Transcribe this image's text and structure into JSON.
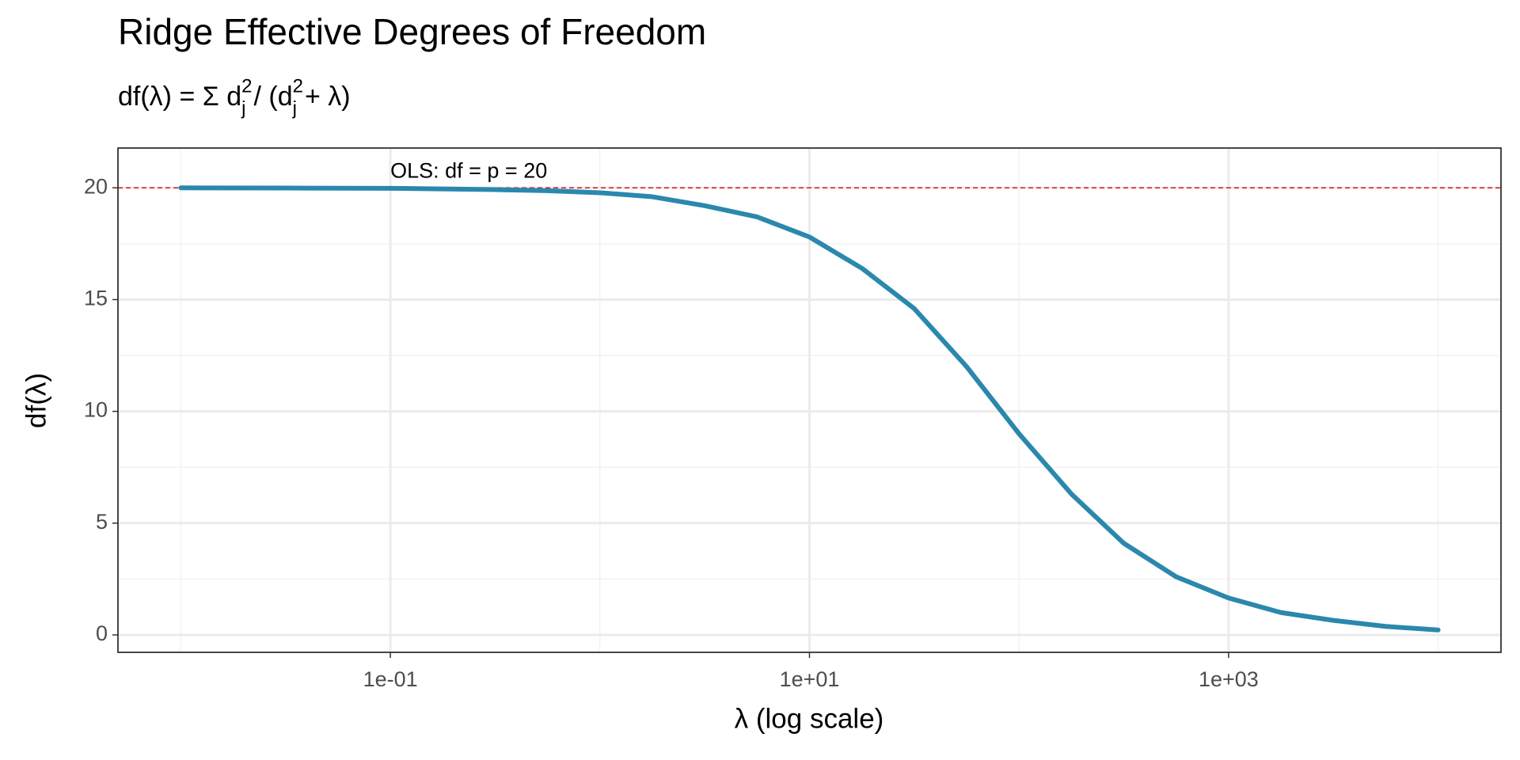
{
  "chart_data": {
    "type": "line",
    "title": "Ridge Effective Degrees of Freedom",
    "subtitle": [
      "df(λ) = Σ d",
      "j",
      "2",
      " / (d",
      "j",
      "2",
      " + λ)"
    ],
    "x_label": "λ (log scale)",
    "y_label": "df(λ)",
    "x": [
      0.01,
      0.0316,
      0.1,
      0.316,
      0.562,
      1,
      1.78,
      3.16,
      5.62,
      10,
      17.8,
      31.6,
      56.2,
      100,
      178,
      316,
      562,
      1000,
      1778,
      3162,
      5623,
      10000
    ],
    "values": [
      20,
      19.99,
      19.98,
      19.92,
      19.87,
      19.78,
      19.6,
      19.2,
      18.7,
      17.8,
      16.4,
      14.6,
      12.0,
      9.0,
      6.3,
      4.1,
      2.6,
      1.65,
      1.0,
      0.65,
      0.38,
      0.22
    ],
    "color": "#2b88ad",
    "x_log": true,
    "xlim": [
      0.005012,
      19953
    ],
    "ylim": [
      -0.78,
      21.78
    ],
    "xticks": [
      {
        "value": 0.1,
        "label": "1e-01"
      },
      {
        "value": 10,
        "label": "1e+01"
      },
      {
        "value": 1000,
        "label": "1e+03"
      }
    ],
    "yticks": [
      0,
      5,
      10,
      15,
      20
    ],
    "x_minor_grid": [
      0.01,
      1,
      100,
      10000
    ],
    "y_minor_grid": [
      2.5,
      7.5,
      12.5,
      17.5
    ],
    "grid": true,
    "hline": {
      "value": 20,
      "color": "#d7191c",
      "label": "OLS: df = p = 20",
      "label_x": 0.1,
      "label_y": 20.7
    }
  }
}
